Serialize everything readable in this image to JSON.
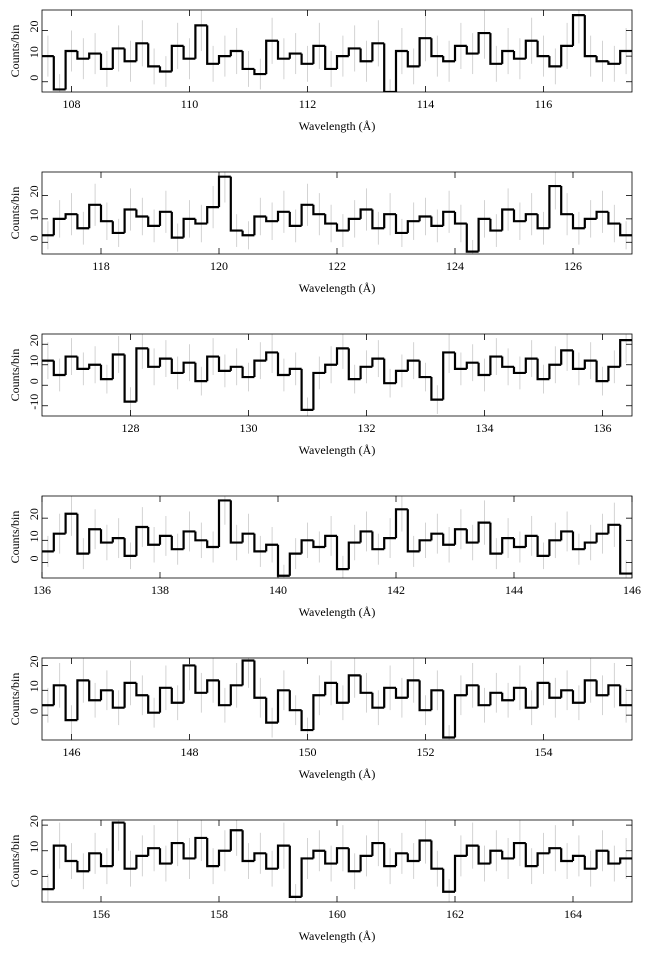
{
  "chart_data": [
    {
      "type": "histogram",
      "xlabel": "Wavelength (Å)",
      "ylabel": "Counts/bin",
      "color": "#000000",
      "error_color": "#c8c8c8",
      "xlim": [
        107.5,
        117.5
      ],
      "ylim": [
        -4,
        28
      ],
      "xticks": [
        108,
        110,
        112,
        114,
        116
      ],
      "yticks": [
        0,
        10,
        20
      ],
      "bins": [
        107.5,
        107.7,
        107.9,
        108.1,
        108.3,
        108.5,
        108.7,
        108.9,
        109.1,
        109.3,
        109.5,
        109.7,
        109.9,
        110.1,
        110.3,
        110.5,
        110.7,
        110.9,
        111.1,
        111.3,
        111.5,
        111.7,
        111.9,
        112.1,
        112.3,
        112.5,
        112.7,
        112.9,
        113.1,
        113.3,
        113.5,
        113.7,
        113.9,
        114.1,
        114.3,
        114.5,
        114.7,
        114.9,
        115.1,
        115.3,
        115.5,
        115.7,
        115.9,
        116.1,
        116.3,
        116.5,
        116.7,
        116.9,
        117.1,
        117.3,
        117.5
      ],
      "values": [
        10,
        -3,
        12,
        9,
        11,
        5,
        13,
        8,
        15,
        6,
        4,
        14,
        9,
        22,
        7,
        10,
        12,
        5,
        3,
        16,
        9,
        11,
        7,
        14,
        5,
        10,
        13,
        8,
        15,
        -4,
        12,
        6,
        17,
        10,
        8,
        14,
        11,
        19,
        7,
        12,
        9,
        16,
        10,
        6,
        14,
        26,
        10,
        8,
        7,
        12
      ],
      "errors": [
        8,
        6,
        8,
        8,
        8,
        7,
        9,
        8,
        9,
        7,
        6,
        9,
        8,
        10,
        7,
        8,
        9,
        7,
        6,
        9,
        8,
        8,
        7,
        9,
        7,
        8,
        9,
        8,
        9,
        5,
        9,
        7,
        9,
        8,
        8,
        9,
        8,
        10,
        7,
        9,
        8,
        9,
        8,
        7,
        9,
        11,
        8,
        8,
        7,
        9
      ]
    },
    {
      "type": "histogram",
      "xlabel": "Wavelength (Å)",
      "ylabel": "Counts/bin",
      "color": "#000000",
      "error_color": "#c8c8c8",
      "xlim": [
        117,
        127
      ],
      "ylim": [
        -5,
        30
      ],
      "xticks": [
        118,
        120,
        122,
        124,
        126
      ],
      "yticks": [
        0,
        10,
        20
      ],
      "bins": [
        117,
        117.2,
        117.4,
        117.6,
        117.8,
        118,
        118.2,
        118.4,
        118.6,
        118.8,
        119,
        119.2,
        119.4,
        119.6,
        119.8,
        120,
        120.2,
        120.4,
        120.6,
        120.8,
        121,
        121.2,
        121.4,
        121.6,
        121.8,
        122,
        122.2,
        122.4,
        122.6,
        122.8,
        123,
        123.2,
        123.4,
        123.6,
        123.8,
        124,
        124.2,
        124.4,
        124.6,
        124.8,
        125,
        125.2,
        125.4,
        125.6,
        125.8,
        126,
        126.2,
        126.4,
        126.6,
        126.8,
        127
      ],
      "values": [
        3,
        10,
        12,
        6,
        16,
        9,
        4,
        14,
        11,
        7,
        13,
        2,
        10,
        8,
        15,
        28,
        5,
        3,
        11,
        9,
        13,
        7,
        16,
        12,
        8,
        5,
        10,
        14,
        6,
        12,
        4,
        9,
        11,
        7,
        13,
        8,
        -4,
        10,
        5,
        14,
        9,
        12,
        6,
        24,
        12,
        6,
        10,
        13,
        8,
        3
      ],
      "errors": [
        6,
        8,
        9,
        7,
        9,
        8,
        6,
        9,
        8,
        7,
        9,
        6,
        8,
        8,
        9,
        11,
        7,
        6,
        8,
        8,
        9,
        7,
        9,
        9,
        8,
        7,
        8,
        9,
        7,
        9,
        6,
        8,
        8,
        7,
        9,
        8,
        5,
        8,
        7,
        9,
        8,
        9,
        7,
        10,
        9,
        7,
        8,
        9,
        8,
        6
      ]
    },
    {
      "type": "histogram",
      "xlabel": "Wavelength (Å)",
      "ylabel": "Counts/bin",
      "color": "#000000",
      "error_color": "#c8c8c8",
      "xlim": [
        126.5,
        136.5
      ],
      "ylim": [
        -15,
        25
      ],
      "xticks": [
        128,
        130,
        132,
        134,
        136
      ],
      "yticks": [
        -10,
        0,
        10,
        20
      ],
      "bins": [
        126.5,
        126.7,
        126.9,
        127.1,
        127.3,
        127.5,
        127.7,
        127.9,
        128.1,
        128.3,
        128.5,
        128.7,
        128.9,
        129.1,
        129.3,
        129.5,
        129.7,
        129.9,
        130.1,
        130.3,
        130.5,
        130.7,
        130.9,
        131.1,
        131.3,
        131.5,
        131.7,
        131.9,
        132.1,
        132.3,
        132.5,
        132.7,
        132.9,
        133.1,
        133.3,
        133.5,
        133.7,
        133.9,
        134.1,
        134.3,
        134.5,
        134.7,
        134.9,
        135.1,
        135.3,
        135.5,
        135.7,
        135.9,
        136.1,
        136.3,
        136.5
      ],
      "values": [
        12,
        5,
        14,
        8,
        10,
        3,
        15,
        -8,
        18,
        9,
        13,
        6,
        11,
        2,
        14,
        7,
        9,
        4,
        12,
        16,
        5,
        8,
        -12,
        6,
        10,
        18,
        3,
        9,
        13,
        1,
        7,
        12,
        4,
        -7,
        16,
        8,
        11,
        5,
        14,
        9,
        6,
        13,
        3,
        10,
        17,
        8,
        12,
        2,
        9,
        22
      ],
      "errors": [
        9,
        8,
        9,
        8,
        9,
        7,
        9,
        7,
        10,
        9,
        9,
        8,
        9,
        7,
        9,
        8,
        9,
        7,
        9,
        10,
        8,
        8,
        6,
        8,
        9,
        10,
        7,
        8,
        9,
        7,
        8,
        9,
        7,
        7,
        10,
        8,
        9,
        8,
        9,
        9,
        8,
        9,
        7,
        9,
        10,
        8,
        9,
        7,
        8,
        11
      ]
    },
    {
      "type": "histogram",
      "xlabel": "Wavelength (Å)",
      "ylabel": "Counts/bin",
      "color": "#000000",
      "error_color": "#c8c8c8",
      "xlim": [
        136,
        146
      ],
      "ylim": [
        -7,
        30
      ],
      "xticks": [
        136,
        138,
        140,
        142,
        144,
        146
      ],
      "yticks": [
        0,
        10,
        20
      ],
      "bins": [
        136,
        136.2,
        136.4,
        136.6,
        136.8,
        137,
        137.2,
        137.4,
        137.6,
        137.8,
        138,
        138.2,
        138.4,
        138.6,
        138.8,
        139,
        139.2,
        139.4,
        139.6,
        139.8,
        140,
        140.2,
        140.4,
        140.6,
        140.8,
        141,
        141.2,
        141.4,
        141.6,
        141.8,
        142,
        142.2,
        142.4,
        142.6,
        142.8,
        143,
        143.2,
        143.4,
        143.6,
        143.8,
        144,
        144.2,
        144.4,
        144.6,
        144.8,
        145,
        145.2,
        145.4,
        145.6,
        145.8,
        146
      ],
      "values": [
        5,
        13,
        22,
        4,
        15,
        9,
        11,
        3,
        16,
        8,
        12,
        6,
        14,
        10,
        7,
        28,
        9,
        13,
        5,
        8,
        -6,
        4,
        10,
        7,
        12,
        -3,
        9,
        14,
        6,
        11,
        24,
        5,
        10,
        13,
        8,
        15,
        9,
        18,
        4,
        11,
        7,
        12,
        3,
        10,
        14,
        6,
        9,
        13,
        17,
        -5
      ],
      "errors": [
        7,
        9,
        10,
        7,
        9,
        8,
        9,
        6,
        9,
        8,
        9,
        7,
        9,
        8,
        7,
        11,
        8,
        9,
        7,
        8,
        5,
        7,
        8,
        7,
        9,
        6,
        8,
        9,
        7,
        9,
        10,
        7,
        8,
        9,
        8,
        9,
        8,
        10,
        7,
        9,
        7,
        9,
        6,
        8,
        9,
        7,
        8,
        9,
        10,
        6
      ]
    },
    {
      "type": "histogram",
      "xlabel": "Wavelength (Å)",
      "ylabel": "Counts/bin",
      "color": "#000000",
      "error_color": "#c8c8c8",
      "xlim": [
        145.5,
        155.5
      ],
      "ylim": [
        -10,
        23
      ],
      "xticks": [
        146,
        148,
        150,
        152,
        154
      ],
      "yticks": [
        0,
        10,
        20
      ],
      "bins": [
        145.5,
        145.7,
        145.9,
        146.1,
        146.3,
        146.5,
        146.7,
        146.9,
        147.1,
        147.3,
        147.5,
        147.7,
        147.9,
        148.1,
        148.3,
        148.5,
        148.7,
        148.9,
        149.1,
        149.3,
        149.5,
        149.7,
        149.9,
        150.1,
        150.3,
        150.5,
        150.7,
        150.9,
        151.1,
        151.3,
        151.5,
        151.7,
        151.9,
        152.1,
        152.3,
        152.5,
        152.7,
        152.9,
        153.1,
        153.3,
        153.5,
        153.7,
        153.9,
        154.1,
        154.3,
        154.5,
        154.7,
        154.9,
        155.1,
        155.3,
        155.5
      ],
      "values": [
        4,
        12,
        -2,
        14,
        6,
        10,
        3,
        13,
        8,
        1,
        11,
        5,
        20,
        9,
        14,
        4,
        12,
        22,
        7,
        -3,
        10,
        2,
        -6,
        8,
        13,
        5,
        16,
        9,
        3,
        11,
        7,
        14,
        2,
        10,
        -9,
        8,
        12,
        4,
        9,
        6,
        11,
        3,
        13,
        7,
        10,
        5,
        14,
        8,
        12,
        4
      ],
      "errors": [
        7,
        9,
        6,
        9,
        7,
        8,
        7,
        9,
        8,
        6,
        9,
        7,
        10,
        8,
        9,
        7,
        9,
        11,
        8,
        6,
        8,
        6,
        5,
        8,
        9,
        7,
        9,
        8,
        7,
        9,
        8,
        9,
        6,
        8,
        5,
        8,
        9,
        7,
        8,
        7,
        9,
        7,
        9,
        8,
        8,
        7,
        9,
        8,
        9,
        7
      ]
    },
    {
      "type": "histogram",
      "xlabel": "Wavelength (Å)",
      "ylabel": "Counts/bin",
      "color": "#000000",
      "error_color": "#c8c8c8",
      "xlim": [
        155,
        165
      ],
      "ylim": [
        -10,
        22
      ],
      "xticks": [
        156,
        158,
        160,
        162,
        164
      ],
      "yticks": [
        0,
        10,
        20
      ],
      "bins": [
        155,
        155.2,
        155.4,
        155.6,
        155.8,
        156,
        156.2,
        156.4,
        156.6,
        156.8,
        157,
        157.2,
        157.4,
        157.6,
        157.8,
        158,
        158.2,
        158.4,
        158.6,
        158.8,
        159,
        159.2,
        159.4,
        159.6,
        159.8,
        160,
        160.2,
        160.4,
        160.6,
        160.8,
        161,
        161.2,
        161.4,
        161.6,
        161.8,
        162,
        162.2,
        162.4,
        162.6,
        162.8,
        163,
        163.2,
        163.4,
        163.6,
        163.8,
        164,
        164.2,
        164.4,
        164.6,
        164.8,
        165
      ],
      "values": [
        -5,
        12,
        6,
        2,
        9,
        4,
        21,
        3,
        8,
        11,
        5,
        13,
        7,
        15,
        4,
        10,
        18,
        6,
        9,
        3,
        12,
        -8,
        7,
        10,
        5,
        11,
        2,
        8,
        13,
        4,
        9,
        6,
        14,
        3,
        -6,
        8,
        12,
        5,
        10,
        7,
        13,
        4,
        9,
        11,
        6,
        8,
        3,
        10,
        5,
        7
      ],
      "errors": [
        6,
        9,
        7,
        7,
        8,
        7,
        11,
        7,
        8,
        9,
        7,
        9,
        8,
        9,
        7,
        8,
        10,
        7,
        8,
        7,
        9,
        5,
        8,
        8,
        7,
        9,
        7,
        8,
        9,
        7,
        8,
        7,
        9,
        7,
        5,
        8,
        9,
        7,
        8,
        8,
        9,
        7,
        8,
        9,
        7,
        8,
        7,
        8,
        7,
        8
      ]
    }
  ]
}
